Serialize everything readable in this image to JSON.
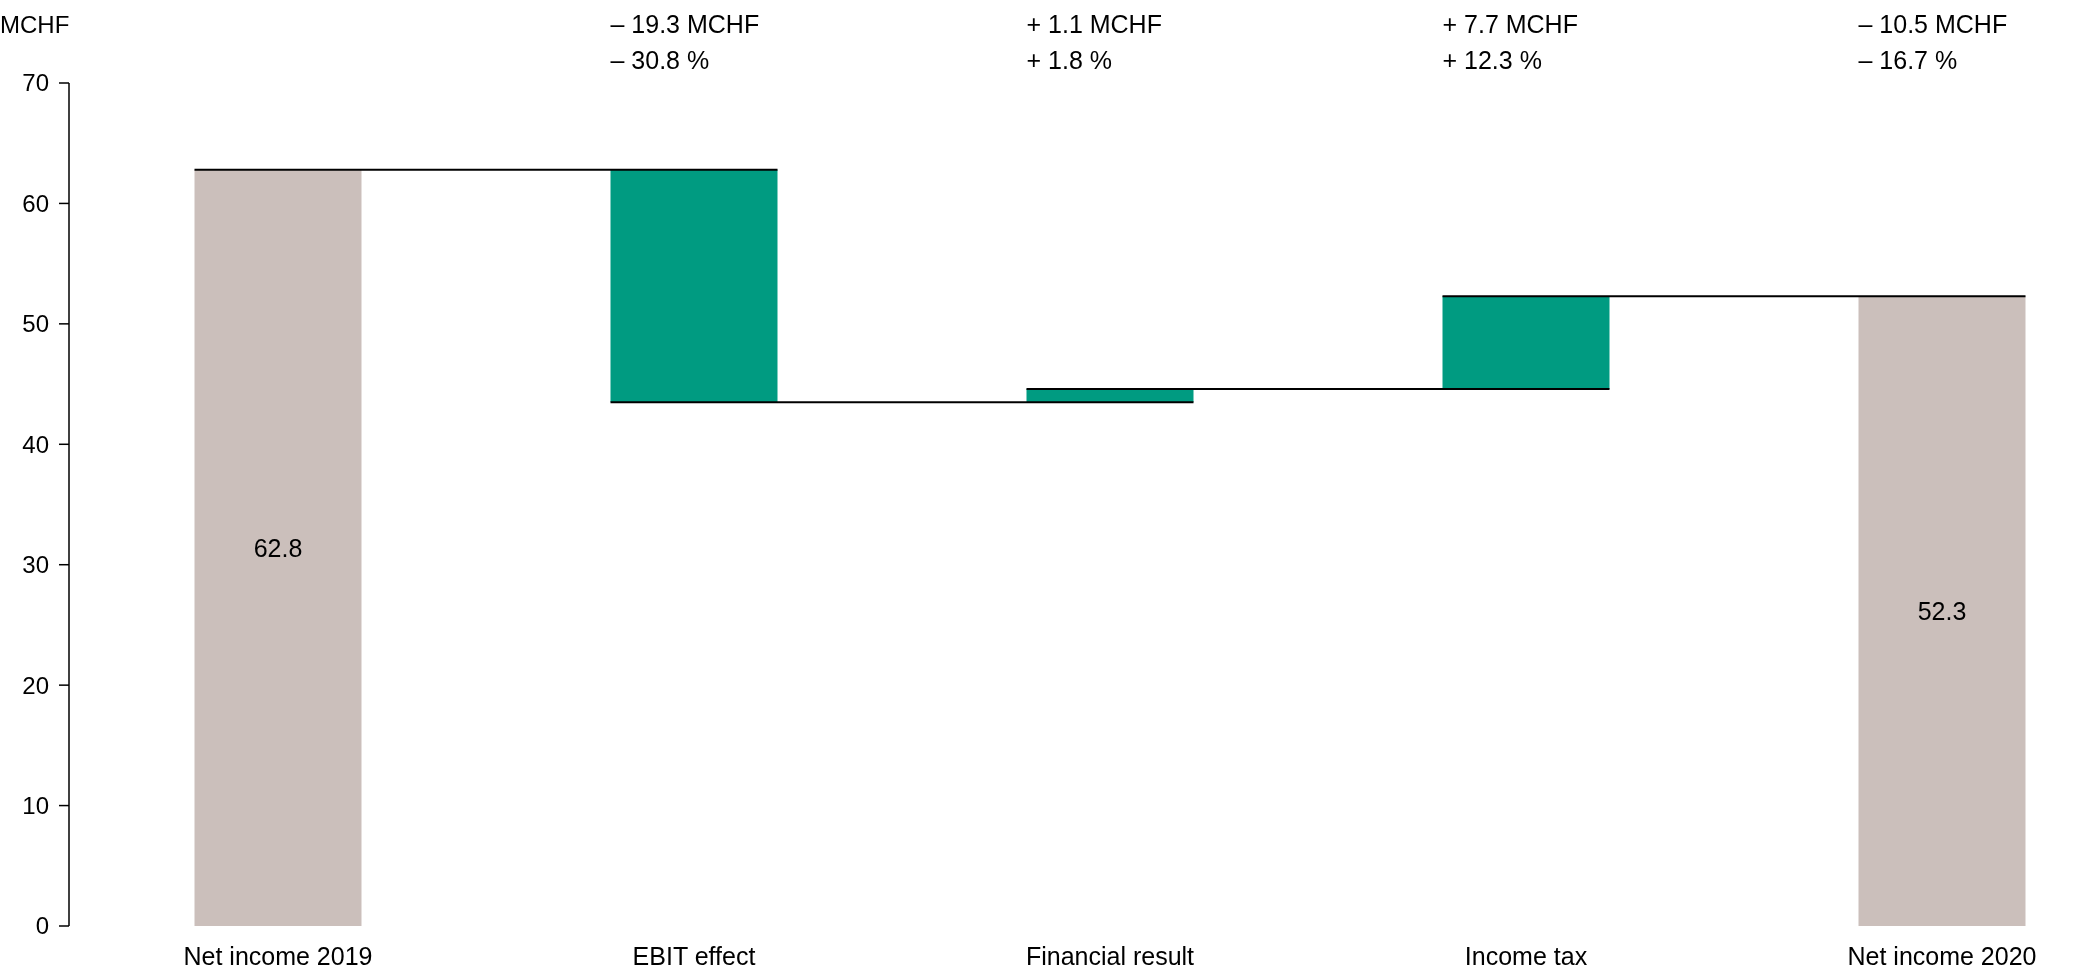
{
  "chart_data": {
    "type": "bar",
    "ylabel": "MCHF",
    "categories": [
      "Net income 2019",
      "EBIT effect",
      "Financial result",
      "Income tax",
      "Net income 2020"
    ],
    "values": [
      62.8,
      -19.3,
      1.1,
      7.7,
      52.3
    ],
    "base": [
      0,
      62.8,
      43.5,
      44.6,
      0
    ],
    "colors": [
      "#cbbfbb",
      "#009b81",
      "#009b81",
      "#009b81",
      "#cbbfbb"
    ],
    "value_labels": [
      "62.8",
      null,
      null,
      null,
      "52.3"
    ],
    "annotations": [
      "– 19.3 MCHF\n– 30.8 %",
      "+ 1.1 MCHF\n+ 1.8 %",
      "+ 7.7 MCHF\n+ 12.3 %",
      "– 10.5 MCHF\n– 16.7 %"
    ],
    "ylim": [
      0,
      70
    ],
    "yticks": [
      0,
      10,
      20,
      30,
      40,
      50,
      60,
      70
    ],
    "grid": false
  }
}
